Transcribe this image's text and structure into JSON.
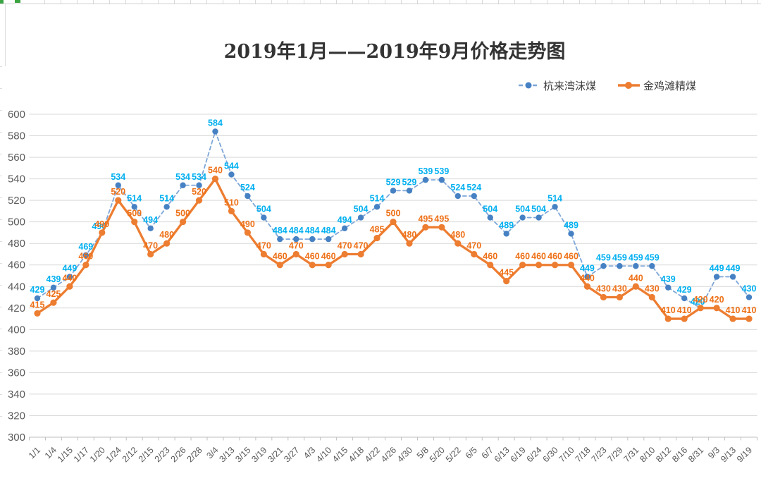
{
  "chart_data": {
    "type": "line",
    "title": "2019年1月——2019年9月价格走势图",
    "categories": [
      "1/1",
      "1/4",
      "1/15",
      "1/17",
      "1/20",
      "1/24",
      "2/12",
      "2/15",
      "2/23",
      "2/26",
      "2/28",
      "3/4",
      "3/13",
      "3/15",
      "3/19",
      "3/21",
      "3/27",
      "4/3",
      "4/10",
      "4/15",
      "4/18",
      "4/22",
      "4/26",
      "4/30",
      "5/8",
      "5/20",
      "5/22",
      "6/5",
      "6/7",
      "6/13",
      "6/19",
      "6/24",
      "6/30",
      "7/10",
      "7/18",
      "7/23",
      "7/29",
      "7/31",
      "8/10",
      "8/12",
      "8/16",
      "8/31",
      "9/3",
      "9/13",
      "9/19"
    ],
    "series": [
      {
        "name": "杭来湾沫煤",
        "values": [
          429,
          439,
          449,
          469,
          490,
          534,
          514,
          494,
          514,
          534,
          534,
          584,
          544,
          524,
          504,
          484,
          484,
          484,
          484,
          494,
          504,
          514,
          529,
          529,
          539,
          539,
          524,
          524,
          504,
          489,
          504,
          504,
          514,
          489,
          449,
          459,
          459,
          459,
          459,
          439,
          429,
          420,
          449,
          449,
          430
        ],
        "style": "dashed",
        "line_color": "#7ea6d8",
        "marker_color": "#4681c3",
        "label_color": "#00b0f0"
      },
      {
        "name": "金鸡滩精煤",
        "values": [
          415,
          425,
          440,
          460,
          490,
          520,
          500,
          470,
          480,
          500,
          520,
          540,
          510,
          490,
          470,
          460,
          470,
          460,
          460,
          470,
          470,
          485,
          500,
          480,
          495,
          495,
          480,
          470,
          460,
          445,
          460,
          460,
          460,
          460,
          440,
          430,
          430,
          440,
          430,
          410,
          410,
          420,
          420,
          410,
          410
        ],
        "style": "solid",
        "line_color": "#ed7d31",
        "marker_color": "#ed7d31",
        "label_color": "#ee7118"
      }
    ],
    "ylim": [
      300,
      600
    ],
    "ytick_step": 20,
    "yticks": [
      600,
      580,
      560,
      540,
      520,
      500,
      480,
      460,
      440,
      420,
      400,
      380,
      360,
      340,
      320,
      300
    ],
    "grid": true,
    "legend_position": "top-right",
    "gridline_color": "#d9d9d9",
    "axis_color": "#bfbfbf",
    "tick_label_color": "#595959"
  },
  "artifacts": {
    "green_accent": "#3aa440"
  }
}
